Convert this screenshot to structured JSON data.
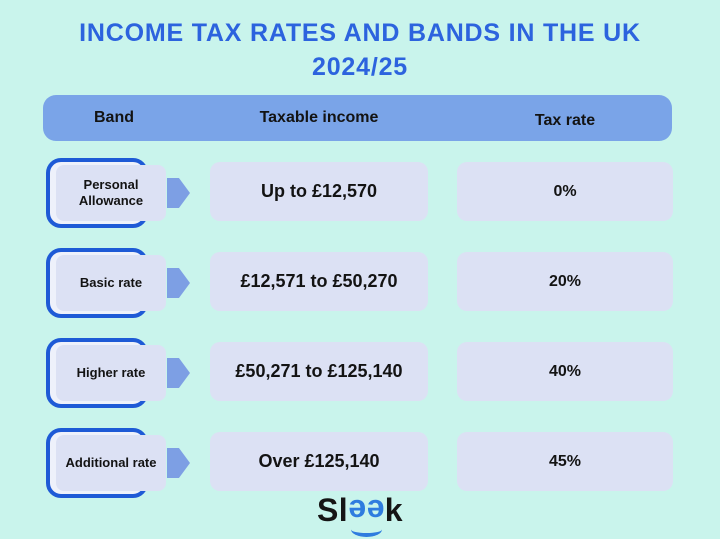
{
  "title": {
    "line1": "INCOME TAX RATES AND BANDS IN THE UK",
    "line2": "2024/25"
  },
  "chart_data": {
    "type": "table",
    "title": "INCOME TAX RATES AND BANDS IN THE UK 2024/25",
    "columns": [
      "Band",
      "Taxable income",
      "Tax rate"
    ],
    "rows": [
      [
        "Personal Allowance",
        "Up to £12,570",
        "0%"
      ],
      [
        "Basic rate",
        "£12,571 to £50,270",
        "20%"
      ],
      [
        "Higher rate",
        "£50,271 to £125,140",
        "40%"
      ],
      [
        "Additional rate",
        "Over £125,140",
        "45%"
      ]
    ],
    "tax_year": "2024/25",
    "rates_numeric_percent": [
      0,
      20,
      40,
      45
    ]
  },
  "logo": {
    "text_before": "Sl",
    "text_mid": "ee",
    "text_after": "k"
  },
  "colors": {
    "background": "#c9f4ec",
    "header_bar": "#7aa4e8",
    "cell_fill": "#dce1f4",
    "outline_blue": "#1e5ad6",
    "arrow_blue": "#7d9fe4",
    "title_blue": "#2c63de",
    "text_black": "#131313",
    "logo_blue": "#2f7cdf"
  }
}
